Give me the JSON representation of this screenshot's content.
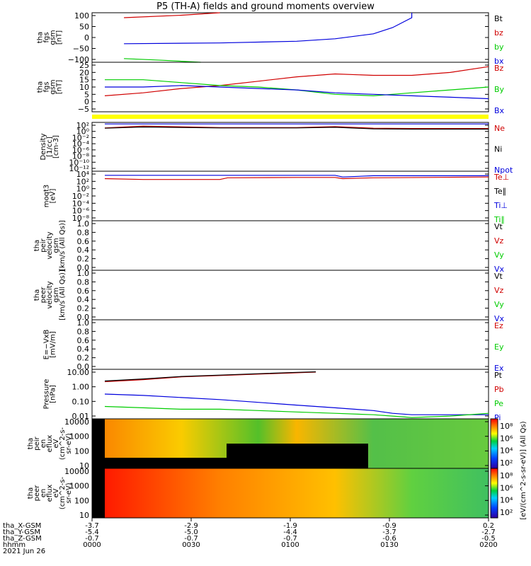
{
  "title": "P5 (TH-A) fields and ground moments overview",
  "colors": {
    "black": "#000000",
    "red": "#d00000",
    "green": "#00cc00",
    "blue": "#0000dd",
    "yellow": "#ffff00"
  },
  "chart_data": [
    {
      "id": "fgs",
      "type": "line",
      "ylabel_lines": [
        "tha",
        "fgs",
        "gsm",
        "[nT]"
      ],
      "ylim": [
        -100,
        100
      ],
      "yticks": [
        "100",
        "50",
        "0",
        "−50",
        "−100"
      ],
      "legend": [
        {
          "text": "Bt",
          "color": "black"
        },
        {
          "text": "bz",
          "color": "red"
        },
        {
          "text": "by",
          "color": "green"
        },
        {
          "text": "bx",
          "color": "blue"
        }
      ],
      "series": [
        {
          "name": "bz",
          "color": "red",
          "x": [
            0.05,
            0.2,
            0.3
          ],
          "y": [
            80,
            90,
            100
          ]
        },
        {
          "name": "by",
          "color": "green",
          "x": [
            0.05,
            0.15,
            0.25
          ],
          "y": [
            -85,
            -92,
            -100
          ]
        },
        {
          "name": "bx",
          "color": "blue",
          "x": [
            0.05,
            0.3,
            0.5,
            0.6,
            0.7,
            0.75,
            0.8,
            0.8
          ],
          "y": [
            -25,
            -22,
            -15,
            -5,
            15,
            40,
            80,
            100
          ]
        }
      ]
    },
    {
      "id": "fgs_dsl",
      "type": "line",
      "ylabel_lines": [
        "tha",
        "fgs",
        "gsm",
        "[nT]"
      ],
      "ylim": [
        -7,
        27
      ],
      "yticks": [
        "25",
        "20",
        "15",
        "10",
        "5",
        "0",
        "−5"
      ],
      "legend": [
        {
          "text": "Bz",
          "color": "red"
        },
        {
          "text": "By",
          "color": "green"
        },
        {
          "text": "Bx",
          "color": "blue"
        }
      ],
      "series": [
        {
          "name": "Bz",
          "color": "red",
          "x": [
            0.0,
            0.1,
            0.2,
            0.3,
            0.4,
            0.5,
            0.6,
            0.7,
            0.8,
            0.9,
            1.0
          ],
          "y": [
            4,
            6,
            9,
            11,
            14,
            17,
            19,
            18,
            18,
            20,
            24
          ]
        },
        {
          "name": "By",
          "color": "green",
          "x": [
            0.0,
            0.1,
            0.2,
            0.3,
            0.4,
            0.5,
            0.6,
            0.7,
            0.8,
            0.9,
            1.0
          ],
          "y": [
            15,
            15,
            13,
            11,
            10,
            8,
            5,
            4,
            6,
            8,
            10
          ]
        },
        {
          "name": "Bx",
          "color": "blue",
          "x": [
            0.0,
            0.1,
            0.2,
            0.3,
            0.4,
            0.5,
            0.6,
            0.7,
            0.8,
            0.9,
            1.0
          ],
          "y": [
            10,
            10,
            11,
            10,
            9,
            8,
            6,
            5,
            4,
            3,
            2
          ]
        }
      ]
    },
    {
      "id": "density",
      "type": "line",
      "ylabel_lines": [
        "Density",
        "[1/cc]",
        "[cm-3]"
      ],
      "log": true,
      "ylim_exp": [
        -14,
        2
      ],
      "yticks": [
        "10²",
        "10⁰",
        "10⁻²",
        "10⁻⁴",
        "10⁻⁶",
        "10⁻⁸",
        "10⁻¹⁰",
        "10⁻¹²"
      ],
      "legend": [
        {
          "text": "Ne",
          "color": "red"
        },
        {
          "text": "Ni",
          "color": "black"
        },
        {
          "text": "Npot",
          "color": "blue"
        }
      ],
      "series": [
        {
          "name": "Ne",
          "color": "red",
          "x": [
            0.0,
            0.1,
            0.3,
            0.5,
            0.6,
            0.7,
            0.8,
            1.0
          ],
          "yexp": [
            0.2,
            0.8,
            0.3,
            0.3,
            0.6,
            0.1,
            0.0,
            0.0
          ]
        },
        {
          "name": "Ni",
          "color": "black",
          "x": [
            0.0,
            0.1,
            0.3,
            0.5,
            0.6,
            0.7,
            0.8,
            1.0
          ],
          "yexp": [
            0.1,
            0.5,
            0.2,
            0.2,
            0.4,
            -0.1,
            -0.2,
            -0.2
          ]
        },
        {
          "name": "Npot",
          "color": "blue",
          "x": [
            0.0,
            1.0
          ],
          "yexp": [
            1.5,
            1.5
          ]
        }
      ]
    },
    {
      "id": "temps",
      "type": "line",
      "ylabel_lines": [
        "moqt3",
        "[eV]"
      ],
      "log": true,
      "ylim_exp": [
        -8,
        4
      ],
      "yticks": [
        "10⁴",
        "10²",
        "10⁰",
        "10⁻²",
        "10⁻⁴",
        "10⁻⁶",
        "10⁻⁸"
      ],
      "legend": [
        {
          "text": "Te⊥",
          "color": "red"
        },
        {
          "text": "Te∥",
          "color": "black"
        },
        {
          "text": "Ti⊥",
          "color": "blue"
        },
        {
          "text": "Ti∥",
          "color": "green"
        }
      ],
      "series": [
        {
          "name": "Te",
          "color": "red",
          "x": [
            0.0,
            0.1,
            0.3,
            0.32,
            0.5,
            0.6,
            0.62,
            0.7,
            1.0
          ],
          "yexp": [
            2.2,
            2.0,
            2.0,
            2.4,
            2.5,
            2.5,
            2.2,
            2.4,
            2.6
          ]
        },
        {
          "name": "Ti",
          "color": "blue",
          "x": [
            0.0,
            0.2,
            0.5,
            0.6,
            0.62,
            0.7,
            1.0
          ],
          "yexp": [
            3.0,
            3.0,
            3.0,
            3.0,
            2.6,
            2.9,
            2.9
          ]
        }
      ]
    },
    {
      "id": "peir_vel",
      "type": "line",
      "ylabel_lines": [
        "tha",
        "peir",
        "velocity",
        "gsm",
        "[km/s (All Qs)]"
      ],
      "ylim": [
        0,
        1
      ],
      "yticks": [
        "1.0",
        "0.8",
        "0.6",
        "0.4",
        "0.2",
        "0.0"
      ],
      "legend": [
        {
          "text": "Vt",
          "color": "black"
        },
        {
          "text": "Vz",
          "color": "red"
        },
        {
          "text": "Vy",
          "color": "green"
        },
        {
          "text": "Vx",
          "color": "blue"
        }
      ],
      "series": []
    },
    {
      "id": "peer_vel",
      "type": "line",
      "ylabel_lines": [
        "tha",
        "peer",
        "velocity",
        "gsm",
        "[km/s (All Qs)]"
      ],
      "ylim": [
        0,
        1
      ],
      "yticks": [
        "1.0",
        "0.8",
        "0.6",
        "0.4",
        "0.2",
        "0.0"
      ],
      "legend": [
        {
          "text": "Vt",
          "color": "black"
        },
        {
          "text": "Vz",
          "color": "red"
        },
        {
          "text": "Vy",
          "color": "green"
        },
        {
          "text": "Vx",
          "color": "blue"
        }
      ],
      "series": []
    },
    {
      "id": "efield",
      "type": "line",
      "ylabel_lines": [
        "E=−VxB",
        "[mV/m]"
      ],
      "ylim": [
        0,
        1
      ],
      "yticks": [
        "1.0",
        "0.8",
        "0.6",
        "0.4",
        "0.2",
        "0.0"
      ],
      "legend": [
        {
          "text": "Ez",
          "color": "red"
        },
        {
          "text": "Ey",
          "color": "green"
        },
        {
          "text": "Ex",
          "color": "blue"
        }
      ],
      "series": []
    },
    {
      "id": "pressure",
      "type": "line",
      "ylabel_lines": [
        "Pressure",
        "[nPa]"
      ],
      "log": true,
      "ylim_exp": [
        -2.3,
        1.3
      ],
      "yticks": [
        "10.00",
        "1.00",
        "0.10",
        "0.01"
      ],
      "legend": [
        {
          "text": "Pt",
          "color": "black"
        },
        {
          "text": "Pb",
          "color": "red"
        },
        {
          "text": "Pe",
          "color": "green"
        },
        {
          "text": "Pi",
          "color": "blue"
        }
      ],
      "series": [
        {
          "name": "Pb",
          "color": "red",
          "x": [
            0.0,
            0.1,
            0.2,
            0.3,
            0.4,
            0.5,
            0.55
          ],
          "yexp": [
            0.4,
            0.55,
            0.75,
            0.85,
            0.95,
            1.05,
            1.1
          ]
        },
        {
          "name": "Pt",
          "color": "black",
          "x": [
            0.0,
            0.1,
            0.2,
            0.3,
            0.4,
            0.5,
            0.55
          ],
          "yexp": [
            0.45,
            0.6,
            0.78,
            0.88,
            0.98,
            1.08,
            1.12
          ]
        },
        {
          "name": "Pi",
          "color": "blue",
          "x": [
            0.0,
            0.1,
            0.2,
            0.3,
            0.4,
            0.5,
            0.6,
            0.7,
            0.75,
            0.8,
            0.9,
            1.0
          ],
          "yexp": [
            -0.5,
            -0.6,
            -0.75,
            -0.9,
            -1.1,
            -1.3,
            -1.5,
            -1.7,
            -1.9,
            -2.0,
            -2.0,
            -2.0
          ]
        },
        {
          "name": "Pe",
          "color": "green",
          "x": [
            0.0,
            0.1,
            0.2,
            0.3,
            0.4,
            0.5,
            0.6,
            0.7,
            0.75,
            0.8,
            0.9,
            1.0
          ],
          "yexp": [
            -1.4,
            -1.5,
            -1.6,
            -1.6,
            -1.7,
            -1.8,
            -1.9,
            -2.0,
            -2.1,
            -2.2,
            -2.1,
            -1.9
          ]
        }
      ]
    },
    {
      "id": "peir_eflux",
      "type": "heatmap",
      "ylabel_lines": [
        "tha",
        "peir",
        "en",
        "eflux",
        "eV",
        "(cm^2-s-",
        "sr-eV)"
      ],
      "yticks": [
        "10000",
        "1000",
        "100",
        "10"
      ],
      "colorbar_ticks": [
        "10⁸",
        "10⁶",
        "10⁴",
        "10²"
      ]
    },
    {
      "id": "peer_eflux",
      "type": "heatmap",
      "ylabel_lines": [
        "tha",
        "peer",
        "en",
        "eflux",
        "eV",
        "(cm^2-s-",
        "sr-eV)"
      ],
      "yticks": [
        "10000",
        "1000",
        "100",
        "10"
      ],
      "colorbar_ticks": [
        "10⁸",
        "10⁶",
        "10⁴",
        "10²"
      ]
    }
  ],
  "colorbar_label": "[eV/(cm^2-s-sr-eV)] (All Qs)",
  "footer": {
    "labels": [
      "tha_X-GSM",
      "tha_Y-GSM",
      "tha_Z-GSM",
      "hhmm",
      "2021 Jun 26"
    ],
    "columns": [
      [
        "-3.7",
        "-5.4",
        "-0.7",
        "0000"
      ],
      [
        "-2.9",
        "-5.0",
        "-0.7",
        "0030"
      ],
      [
        "-1.9",
        "-4.4",
        "-0.7",
        "0100"
      ],
      [
        "-0.9",
        "-3.7",
        "-0.6",
        "0130"
      ],
      [
        "0.2",
        "-2.7",
        "-0.5",
        "0200"
      ]
    ]
  }
}
